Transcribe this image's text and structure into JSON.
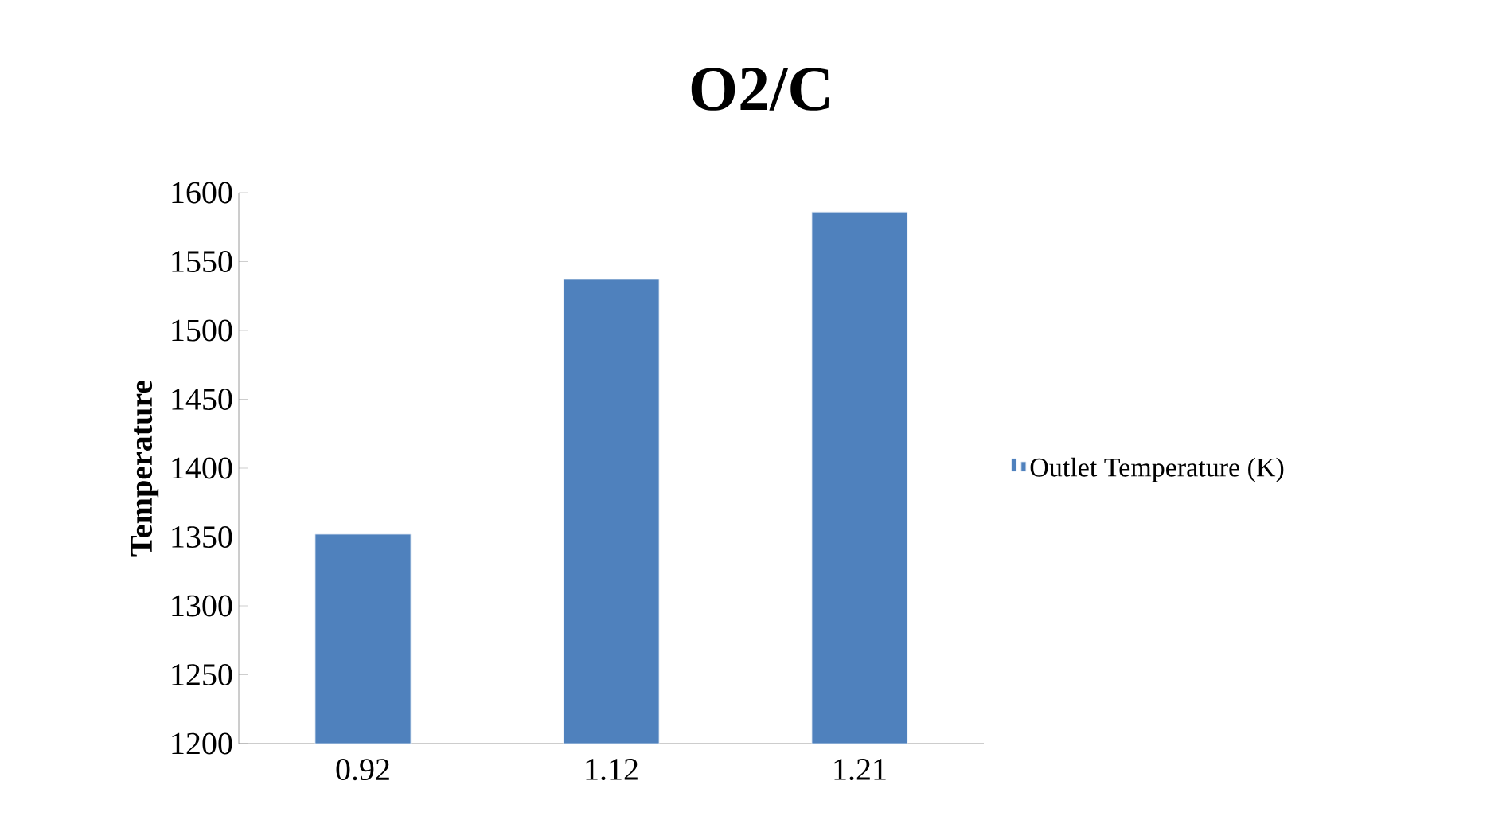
{
  "chart_data": {
    "type": "bar",
    "title": "O2/C",
    "ylabel": "Temperature",
    "categories": [
      "0.92",
      "1.12",
      "1.21"
    ],
    "series": [
      {
        "name": "Outlet Temperature (K)",
        "color": "#4f81bd",
        "values": [
          1352,
          1537,
          1586
        ]
      }
    ],
    "ylim": [
      1200,
      1600
    ],
    "yticks": [
      1200,
      1250,
      1300,
      1350,
      1400,
      1450,
      1500,
      1550,
      1600
    ],
    "grid": false,
    "legend": "right"
  }
}
